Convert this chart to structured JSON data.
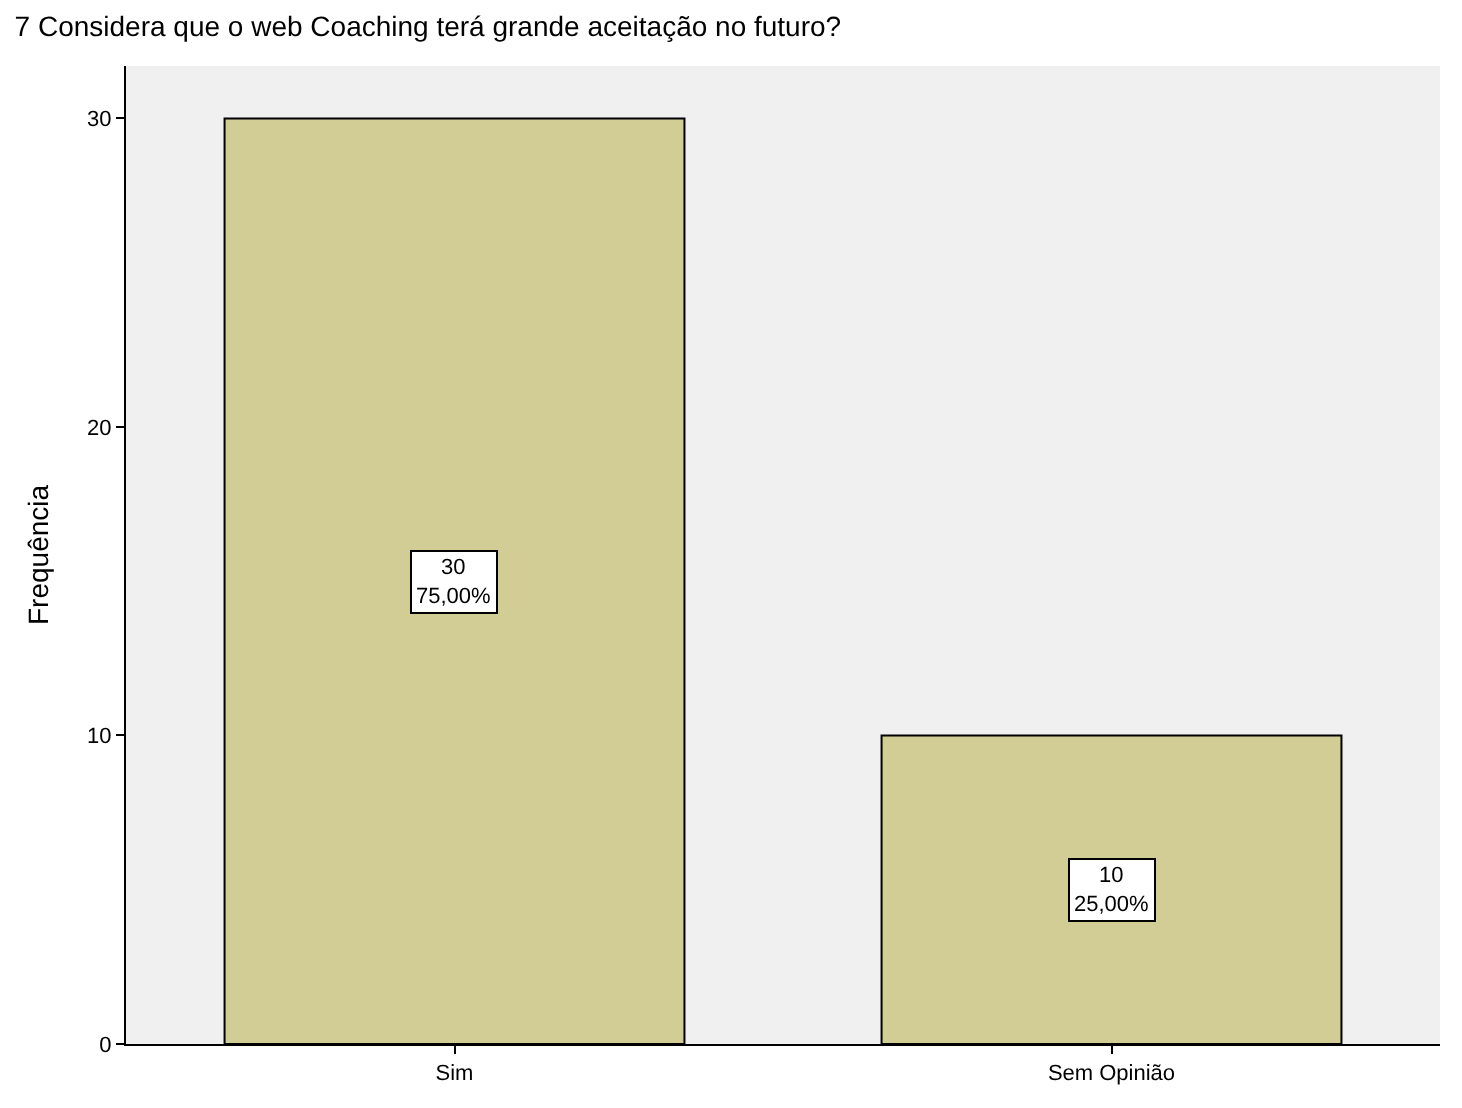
{
  "chart_data": {
    "type": "bar",
    "title": "7 Considera que o web Coaching terá grande aceitação no futuro?",
    "ylabel": "Frequência",
    "categories": [
      "Sim",
      "Sem Opinião"
    ],
    "values": [
      30,
      10
    ],
    "value_labels": [
      "30\n75,00%",
      "10\n25,00%"
    ],
    "color": "#d2cc95",
    "ylim": [
      0,
      31.7
    ],
    "yticks": [
      0,
      10,
      20,
      30
    ],
    "grid": false,
    "legend": false
  }
}
